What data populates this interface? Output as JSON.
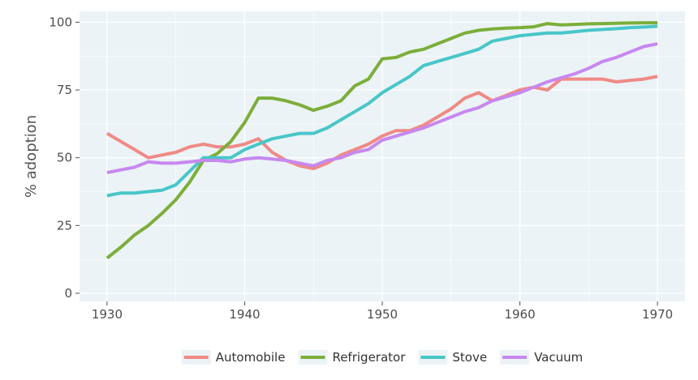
{
  "chart_data": {
    "type": "line",
    "title": "",
    "xlabel": "",
    "ylabel": "% adoption",
    "xlim": [
      1928,
      1972
    ],
    "ylim": [
      -3,
      104
    ],
    "x_ticks": [
      1930,
      1940,
      1950,
      1960,
      1970
    ],
    "y_ticks": [
      0,
      25,
      50,
      75,
      100
    ],
    "grid": true,
    "legend_position": "bottom",
    "series": [
      {
        "name": "Automobile",
        "color": "#f08a86",
        "x": [
          1930,
          1931,
          1932,
          1933,
          1934,
          1935,
          1936,
          1937,
          1938,
          1939,
          1940,
          1941,
          1942,
          1943,
          1944,
          1945,
          1946,
          1947,
          1948,
          1949,
          1950,
          1951,
          1952,
          1953,
          1954,
          1955,
          1956,
          1957,
          1958,
          1959,
          1960,
          1961,
          1962,
          1963,
          1964,
          1965,
          1966,
          1967,
          1968,
          1969,
          1970
        ],
        "values": [
          59,
          56,
          53,
          50,
          51,
          52,
          54,
          55,
          54,
          54,
          55,
          57,
          52,
          49,
          47,
          46,
          48,
          51,
          53,
          55,
          58,
          60,
          60,
          62,
          65,
          68,
          72,
          74,
          71,
          73,
          75,
          76,
          75,
          79,
          79,
          79,
          79,
          78,
          78.5,
          79,
          80
        ]
      },
      {
        "name": "Refrigerator",
        "color": "#7cae3a",
        "x": [
          1930,
          1931,
          1932,
          1933,
          1934,
          1935,
          1936,
          1937,
          1938,
          1939,
          1940,
          1941,
          1942,
          1943,
          1944,
          1945,
          1946,
          1947,
          1948,
          1949,
          1950,
          1951,
          1952,
          1953,
          1954,
          1955,
          1956,
          1957,
          1958,
          1959,
          1960,
          1961,
          1962,
          1963,
          1964,
          1965,
          1966,
          1967,
          1968,
          1969,
          1970
        ],
        "values": [
          13,
          17,
          21.5,
          25,
          29.5,
          34.5,
          41,
          49,
          51.5,
          56,
          63,
          72,
          72,
          71,
          69.5,
          67.5,
          69,
          71,
          76.5,
          79,
          86.5,
          87,
          89,
          90,
          92,
          94,
          96,
          97,
          97.5,
          97.8,
          98,
          98.3,
          99.5,
          99,
          99.2,
          99.4,
          99.5,
          99.6,
          99.7,
          99.8,
          99.8
        ]
      },
      {
        "name": "Stove",
        "color": "#48c6c8",
        "x": [
          1930,
          1931,
          1932,
          1933,
          1934,
          1935,
          1936,
          1937,
          1938,
          1939,
          1940,
          1941,
          1942,
          1943,
          1944,
          1945,
          1946,
          1947,
          1948,
          1949,
          1950,
          1951,
          1952,
          1953,
          1954,
          1955,
          1956,
          1957,
          1958,
          1959,
          1960,
          1961,
          1962,
          1963,
          1964,
          1965,
          1966,
          1967,
          1968,
          1969,
          1970
        ],
        "values": [
          36,
          37,
          37,
          37.5,
          38,
          40,
          45,
          50,
          50,
          50,
          53,
          55,
          57,
          58,
          59,
          59,
          61,
          64,
          67,
          70,
          74,
          77,
          80,
          84,
          85.5,
          87,
          88.5,
          90,
          93,
          94,
          95,
          95.5,
          96,
          96,
          96.5,
          97,
          97.3,
          97.6,
          98,
          98.2,
          98.5
        ]
      },
      {
        "name": "Vacuum",
        "color": "#c788ef",
        "x": [
          1930,
          1931,
          1932,
          1933,
          1934,
          1935,
          1936,
          1937,
          1938,
          1939,
          1940,
          1941,
          1942,
          1943,
          1944,
          1945,
          1946,
          1947,
          1948,
          1949,
          1950,
          1951,
          1952,
          1953,
          1954,
          1955,
          1956,
          1957,
          1958,
          1959,
          1960,
          1961,
          1962,
          1963,
          1964,
          1965,
          1966,
          1967,
          1968,
          1969,
          1970
        ],
        "values": [
          44.5,
          45.5,
          46.5,
          48.5,
          48,
          48,
          48.5,
          49,
          49,
          48.5,
          49.5,
          50,
          49.5,
          49,
          48,
          47,
          49,
          50,
          52,
          53,
          56.5,
          58,
          59.5,
          61,
          63,
          65,
          67,
          68.5,
          71,
          72.5,
          74,
          76,
          78,
          79.5,
          81,
          83,
          85.5,
          87,
          89,
          91,
          92
        ]
      }
    ]
  }
}
